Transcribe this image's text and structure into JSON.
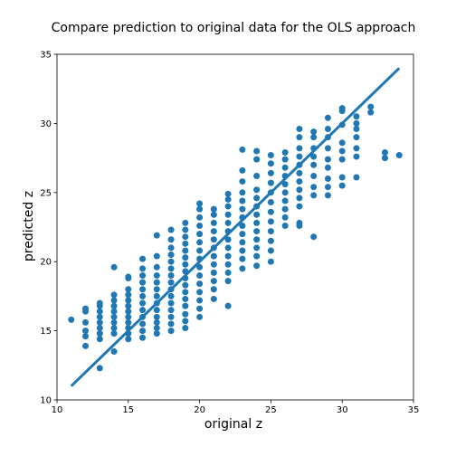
{
  "chart_data": {
    "type": "scatter",
    "title": "Compare prediction to original data for the OLS approach",
    "xlabel": "original z",
    "ylabel": "predicted z",
    "xlim": [
      10,
      35
    ],
    "ylim": [
      10,
      35
    ],
    "xticks": [
      10,
      15,
      20,
      25,
      30,
      35
    ],
    "yticks": [
      10,
      15,
      20,
      25,
      30,
      35
    ],
    "grid": false,
    "point_color": "#1f77b4",
    "line_color": "#1f77b4",
    "series": [
      {
        "type": "scatter",
        "points": [
          [
            11,
            15.8
          ],
          [
            12,
            13.9
          ],
          [
            12,
            14.6
          ],
          [
            12,
            15.0
          ],
          [
            12,
            15.6
          ],
          [
            12,
            16.4
          ],
          [
            12,
            16.6
          ],
          [
            13,
            12.3
          ],
          [
            13,
            14.4
          ],
          [
            13,
            14.8
          ],
          [
            13,
            15.2
          ],
          [
            13,
            15.6
          ],
          [
            13,
            16.0
          ],
          [
            13,
            16.4
          ],
          [
            13,
            16.8
          ],
          [
            13,
            17.0
          ],
          [
            14,
            13.5
          ],
          [
            14,
            14.8
          ],
          [
            14,
            15.2
          ],
          [
            14,
            15.6
          ],
          [
            14,
            16.0
          ],
          [
            14,
            16.4
          ],
          [
            14,
            16.8
          ],
          [
            14,
            17.2
          ],
          [
            14,
            17.6
          ],
          [
            14,
            19.6
          ],
          [
            15,
            14.4
          ],
          [
            15,
            14.8
          ],
          [
            15,
            15.2
          ],
          [
            15,
            15.6
          ],
          [
            15,
            16.0
          ],
          [
            15,
            16.4
          ],
          [
            15,
            16.8
          ],
          [
            15,
            17.2
          ],
          [
            15,
            17.6
          ],
          [
            15,
            18.0
          ],
          [
            15,
            18.8
          ],
          [
            15,
            18.9
          ],
          [
            16,
            14.5
          ],
          [
            16,
            15.0
          ],
          [
            16,
            15.5
          ],
          [
            16,
            16.0
          ],
          [
            16,
            16.5
          ],
          [
            16,
            17.0
          ],
          [
            16,
            17.5
          ],
          [
            16,
            18.0
          ],
          [
            16,
            18.5
          ],
          [
            16,
            19.0
          ],
          [
            16,
            19.5
          ],
          [
            16,
            20.2
          ],
          [
            17,
            14.8
          ],
          [
            17,
            15.2
          ],
          [
            17,
            15.6
          ],
          [
            17,
            16.0
          ],
          [
            17,
            16.5
          ],
          [
            17,
            17.0
          ],
          [
            17,
            17.5
          ],
          [
            17,
            18.0
          ],
          [
            17,
            18.5
          ],
          [
            17,
            19.0
          ],
          [
            17,
            19.6
          ],
          [
            17,
            20.4
          ],
          [
            17,
            21.9
          ],
          [
            18,
            15.0
          ],
          [
            18,
            15.5
          ],
          [
            18,
            16.0
          ],
          [
            18,
            16.5
          ],
          [
            18,
            17.0
          ],
          [
            18,
            17.5
          ],
          [
            18,
            18.0
          ],
          [
            18,
            18.5
          ],
          [
            18,
            19.0
          ],
          [
            18,
            19.5
          ],
          [
            18,
            20.0
          ],
          [
            18,
            20.5
          ],
          [
            18,
            21.0
          ],
          [
            18,
            21.6
          ],
          [
            18,
            22.3
          ],
          [
            19,
            15.2
          ],
          [
            19,
            15.7
          ],
          [
            19,
            16.2
          ],
          [
            19,
            16.8
          ],
          [
            19,
            17.3
          ],
          [
            19,
            17.8
          ],
          [
            19,
            18.3
          ],
          [
            19,
            18.8
          ],
          [
            19,
            19.3
          ],
          [
            19,
            19.8
          ],
          [
            19,
            20.3
          ],
          [
            19,
            20.8
          ],
          [
            19,
            21.3
          ],
          [
            19,
            21.8
          ],
          [
            19,
            22.3
          ],
          [
            19,
            22.8
          ],
          [
            20,
            16.0
          ],
          [
            20,
            16.6
          ],
          [
            20,
            17.2
          ],
          [
            20,
            17.8
          ],
          [
            20,
            18.4
          ],
          [
            20,
            19.0
          ],
          [
            20,
            19.6
          ],
          [
            20,
            20.2
          ],
          [
            20,
            20.8
          ],
          [
            20,
            21.4
          ],
          [
            20,
            22.0
          ],
          [
            20,
            22.6
          ],
          [
            20,
            23.2
          ],
          [
            20,
            23.8
          ],
          [
            20,
            24.2
          ],
          [
            21,
            17.3
          ],
          [
            21,
            18.0
          ],
          [
            21,
            18.6
          ],
          [
            21,
            19.2
          ],
          [
            21,
            19.8
          ],
          [
            21,
            20.4
          ],
          [
            21,
            21.0
          ],
          [
            21,
            21.6
          ],
          [
            21,
            22.2
          ],
          [
            21,
            22.8
          ],
          [
            21,
            23.4
          ],
          [
            21,
            23.8
          ],
          [
            22,
            16.8
          ],
          [
            22,
            18.6
          ],
          [
            22,
            19.2
          ],
          [
            22,
            19.8
          ],
          [
            22,
            20.4
          ],
          [
            22,
            21.0
          ],
          [
            22,
            21.6
          ],
          [
            22,
            22.2
          ],
          [
            22,
            22.8
          ],
          [
            22,
            23.4
          ],
          [
            22,
            24.0
          ],
          [
            22,
            24.5
          ],
          [
            22,
            24.9
          ],
          [
            23,
            19.5
          ],
          [
            23,
            20.2
          ],
          [
            23,
            20.8
          ],
          [
            23,
            21.4
          ],
          [
            23,
            22.0
          ],
          [
            23,
            22.6
          ],
          [
            23,
            23.2
          ],
          [
            23,
            23.8
          ],
          [
            23,
            24.4
          ],
          [
            23,
            25.0
          ],
          [
            23,
            25.8
          ],
          [
            23,
            26.6
          ],
          [
            23,
            28.1
          ],
          [
            24,
            19.7
          ],
          [
            24,
            20.4
          ],
          [
            24,
            21.0
          ],
          [
            24,
            21.6
          ],
          [
            24,
            22.2
          ],
          [
            24,
            22.8
          ],
          [
            24,
            23.4
          ],
          [
            24,
            24.0
          ],
          [
            24,
            24.6
          ],
          [
            24,
            25.2
          ],
          [
            24,
            26.2
          ],
          [
            24,
            27.4
          ],
          [
            24,
            28.0
          ],
          [
            25,
            20.0
          ],
          [
            25,
            20.8
          ],
          [
            25,
            21.5
          ],
          [
            25,
            22.2
          ],
          [
            25,
            22.9
          ],
          [
            25,
            23.6
          ],
          [
            25,
            24.3
          ],
          [
            25,
            25.0
          ],
          [
            25,
            25.7
          ],
          [
            25,
            26.4
          ],
          [
            25,
            27.1
          ],
          [
            25,
            27.7
          ],
          [
            26,
            22.6
          ],
          [
            26,
            23.2
          ],
          [
            26,
            23.8
          ],
          [
            26,
            24.4
          ],
          [
            26,
            25.0
          ],
          [
            26,
            25.6
          ],
          [
            26,
            26.2
          ],
          [
            26,
            26.8
          ],
          [
            26,
            27.4
          ],
          [
            26,
            27.9
          ],
          [
            27,
            22.6
          ],
          [
            27,
            22.8
          ],
          [
            27,
            24.0
          ],
          [
            27,
            24.6
          ],
          [
            27,
            25.2
          ],
          [
            27,
            25.8
          ],
          [
            27,
            26.4
          ],
          [
            27,
            27.0
          ],
          [
            27,
            27.6
          ],
          [
            27,
            28.2
          ],
          [
            27,
            29.0
          ],
          [
            27,
            29.6
          ],
          [
            28,
            21.8
          ],
          [
            28,
            24.8
          ],
          [
            28,
            25.4
          ],
          [
            28,
            26.2
          ],
          [
            28,
            27.0
          ],
          [
            28,
            27.6
          ],
          [
            28,
            28.2
          ],
          [
            28,
            29.0
          ],
          [
            28,
            29.4
          ],
          [
            29,
            24.8
          ],
          [
            29,
            25.4
          ],
          [
            29,
            26.0
          ],
          [
            29,
            26.8
          ],
          [
            29,
            27.4
          ],
          [
            29,
            28.2
          ],
          [
            29,
            29.0
          ],
          [
            29,
            29.6
          ],
          [
            29,
            30.4
          ],
          [
            30,
            25.5
          ],
          [
            30,
            26.1
          ],
          [
            30,
            27.4
          ],
          [
            30,
            28.0
          ],
          [
            30,
            28.6
          ],
          [
            30,
            29.9
          ],
          [
            30,
            30.9
          ],
          [
            30,
            31.1
          ],
          [
            31,
            26.1
          ],
          [
            31,
            27.6
          ],
          [
            31,
            28.2
          ],
          [
            31,
            29.0
          ],
          [
            31,
            29.6
          ],
          [
            31,
            30.0
          ],
          [
            31,
            30.5
          ],
          [
            32,
            30.8
          ],
          [
            32,
            31.2
          ],
          [
            33,
            27.5
          ],
          [
            33,
            27.9
          ],
          [
            34,
            27.7
          ]
        ]
      },
      {
        "type": "line",
        "points": [
          [
            11,
            11
          ],
          [
            34,
            34
          ]
        ]
      }
    ]
  }
}
